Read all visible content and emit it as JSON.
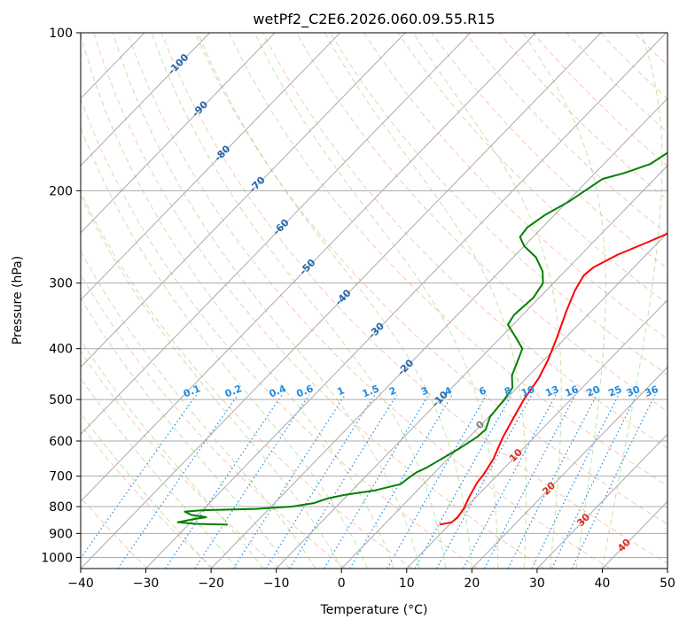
{
  "chart_data": {
    "type": "line",
    "title": "wetPf2_C2E6.2026.060.09.55.R15",
    "xlabel": "Temperature (°C)",
    "ylabel": "Pressure (hPa)",
    "xlim": [
      -40,
      50
    ],
    "ylim": [
      1050,
      100
    ],
    "y_scale": "log",
    "x_ticks": [
      -40,
      -30,
      -20,
      -10,
      0,
      10,
      20,
      30,
      40,
      50
    ],
    "x_tick_labels": [
      "−40",
      "−30",
      "−20",
      "−10",
      "0",
      "10",
      "20",
      "30",
      "40",
      "50"
    ],
    "y_ticks": [
      100,
      200,
      300,
      400,
      500,
      600,
      700,
      800,
      900,
      1000
    ],
    "y_tick_labels": [
      "100",
      "200",
      "300",
      "400",
      "500",
      "600",
      "700",
      "800",
      "900",
      "1000"
    ],
    "grid": true,
    "isotherm_labels": [
      "-100",
      "-90",
      "-80",
      "-70",
      "-60",
      "-50",
      "-40",
      "-30",
      "-20",
      "-10",
      "0",
      "10",
      "20",
      "30",
      "40"
    ],
    "mixing_ratio_labels": [
      "0.1",
      "0.2",
      "0.4",
      "0.6",
      "1",
      "1.5",
      "2",
      "3",
      "4",
      "6",
      "8",
      "10",
      "13",
      "16",
      "20",
      "25",
      "30",
      "36"
    ],
    "series": [
      {
        "color": "#ff0000",
        "points": [
          [
            8.5,
            866
          ],
          [
            10.0,
            857
          ],
          [
            10.2,
            840
          ],
          [
            9.8,
            805
          ],
          [
            9.0,
            770
          ],
          [
            8.0,
            720
          ],
          [
            7.8,
            695
          ],
          [
            7.0,
            650
          ],
          [
            5.2,
            590
          ],
          [
            3.9,
            540
          ],
          [
            2.8,
            500
          ],
          [
            1.9,
            455
          ],
          [
            0.6,
            420
          ],
          [
            -1.4,
            380
          ],
          [
            -3.8,
            340
          ],
          [
            -5.6,
            310
          ],
          [
            -6.5,
            290
          ],
          [
            -6.2,
            280
          ],
          [
            -4.4,
            265
          ],
          [
            -1.5,
            250
          ],
          [
            2.0,
            232
          ],
          [
            6.2,
            215
          ],
          [
            9.0,
            200
          ],
          [
            12.6,
            180
          ],
          [
            15.6,
            163
          ],
          [
            19.0,
            148
          ],
          [
            21.8,
            133
          ],
          [
            23.0,
            120
          ],
          [
            24.8,
            110
          ],
          [
            27.0,
            104
          ],
          [
            29.0,
            100
          ]
        ]
      },
      {
        "color": "#008000",
        "points": [
          [
            -24.0,
            866
          ],
          [
            -29.0,
            863
          ],
          [
            -32.0,
            857
          ],
          [
            -30.0,
            845
          ],
          [
            -28.4,
            838
          ],
          [
            -31.0,
            830
          ],
          [
            -32.5,
            818
          ],
          [
            -30.0,
            813
          ],
          [
            -22.0,
            808
          ],
          [
            -16.8,
            800
          ],
          [
            -14.0,
            788
          ],
          [
            -12.6,
            772
          ],
          [
            -10.5,
            760
          ],
          [
            -6.5,
            745
          ],
          [
            -3.5,
            725
          ],
          [
            -3.2,
            705
          ],
          [
            -2.8,
            688
          ],
          [
            -2.0,
            675
          ],
          [
            -1.5,
            662
          ],
          [
            0.2,
            620
          ],
          [
            1.2,
            590
          ],
          [
            1.4,
            570
          ],
          [
            0.2,
            540
          ],
          [
            -0.2,
            500
          ],
          [
            -0.7,
            475
          ],
          [
            -2.6,
            450
          ],
          [
            -4.0,
            420
          ],
          [
            -5.0,
            400
          ],
          [
            -7.8,
            380
          ],
          [
            -10.8,
            360
          ],
          [
            -11.3,
            345
          ],
          [
            -10.9,
            320
          ],
          [
            -11.6,
            300
          ],
          [
            -13.4,
            285
          ],
          [
            -16.5,
            268
          ],
          [
            -20.0,
            255
          ],
          [
            -22.0,
            245
          ],
          [
            -22.3,
            235
          ],
          [
            -21.4,
            222
          ],
          [
            -19.8,
            210
          ],
          [
            -18.9,
            200
          ],
          [
            -18.0,
            190
          ],
          [
            -15.5,
            185
          ],
          [
            -12.9,
            178
          ],
          [
            -11.4,
            165
          ],
          [
            -10.7,
            150
          ],
          [
            -11.7,
            138
          ],
          [
            -11.8,
            128
          ],
          [
            -10.8,
            118
          ],
          [
            -9.2,
            107
          ],
          [
            -8.5,
            100
          ]
        ]
      }
    ]
  }
}
